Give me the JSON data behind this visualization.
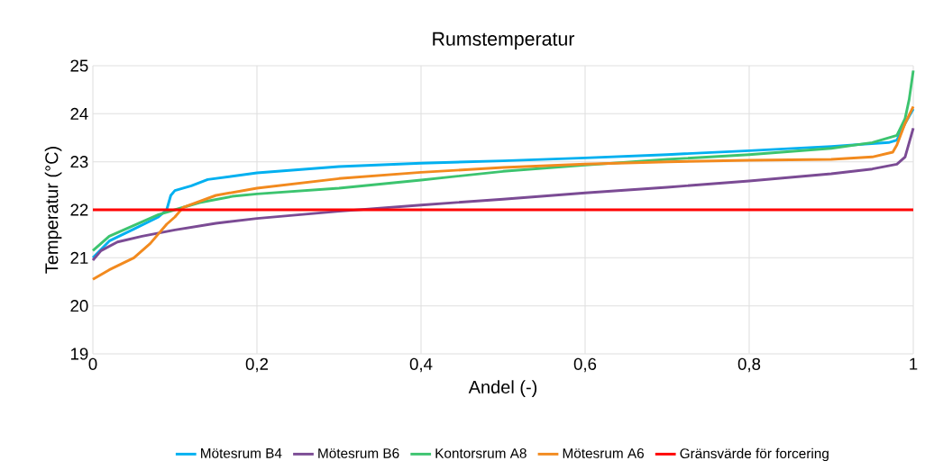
{
  "chart_data": {
    "type": "line",
    "title": "Rumstemperatur",
    "xlabel": "Andel (-)",
    "ylabel": "Temperatur (°C)",
    "xlim": [
      0,
      1
    ],
    "ylim": [
      19,
      25
    ],
    "xticks": [
      0,
      {
        "value": 0.2,
        "label": "0,2"
      },
      {
        "value": 0.4,
        "label": "0,4"
      },
      {
        "value": 0.6,
        "label": "0,6"
      },
      {
        "value": 0.8,
        "label": "0,8"
      },
      1
    ],
    "yticks": [
      19,
      20,
      21,
      22,
      23,
      24,
      25
    ],
    "grid": true,
    "legend": "bottom",
    "marker": "none",
    "line_style": "solid",
    "series": [
      {
        "name": "Mötesrum B4",
        "color": "#00b0f0",
        "x": [
          0,
          0.02,
          0.05,
          0.08,
          0.09,
          0.095,
          0.1,
          0.12,
          0.14,
          0.2,
          0.3,
          0.4,
          0.5,
          0.6,
          0.7,
          0.8,
          0.9,
          0.97,
          0.98,
          0.99,
          1.0
        ],
        "values": [
          21.0,
          21.35,
          21.6,
          21.85,
          22.0,
          22.3,
          22.4,
          22.5,
          22.63,
          22.77,
          22.9,
          22.97,
          23.02,
          23.08,
          23.15,
          23.23,
          23.32,
          23.4,
          23.45,
          23.8,
          24.1
        ]
      },
      {
        "name": "Mötesrum B6",
        "color": "#7b4b94",
        "x": [
          0,
          0.01,
          0.03,
          0.06,
          0.1,
          0.15,
          0.2,
          0.3,
          0.4,
          0.5,
          0.6,
          0.7,
          0.8,
          0.9,
          0.95,
          0.98,
          0.99,
          0.995,
          1.0
        ],
        "values": [
          20.95,
          21.15,
          21.33,
          21.45,
          21.58,
          21.72,
          21.82,
          21.97,
          22.1,
          22.22,
          22.35,
          22.47,
          22.6,
          22.75,
          22.85,
          22.95,
          23.1,
          23.4,
          23.7
        ]
      },
      {
        "name": "Kontorsrum A8",
        "color": "#3cc46f",
        "x": [
          0,
          0.01,
          0.02,
          0.04,
          0.06,
          0.08,
          0.1,
          0.13,
          0.17,
          0.2,
          0.3,
          0.4,
          0.5,
          0.6,
          0.7,
          0.8,
          0.9,
          0.95,
          0.98,
          0.99,
          0.995,
          1.0
        ],
        "values": [
          21.15,
          21.3,
          21.45,
          21.6,
          21.75,
          21.9,
          22.0,
          22.15,
          22.28,
          22.33,
          22.45,
          22.62,
          22.8,
          22.93,
          23.05,
          23.15,
          23.28,
          23.4,
          23.55,
          23.9,
          24.3,
          24.9
        ]
      },
      {
        "name": "Mötesrum A6",
        "color": "#f28a1e",
        "x": [
          0,
          0.02,
          0.05,
          0.07,
          0.09,
          0.1,
          0.11,
          0.15,
          0.2,
          0.3,
          0.4,
          0.5,
          0.6,
          0.7,
          0.8,
          0.9,
          0.95,
          0.975,
          0.98,
          0.99,
          1.0
        ],
        "values": [
          20.55,
          20.75,
          21.0,
          21.3,
          21.7,
          21.85,
          22.05,
          22.3,
          22.45,
          22.65,
          22.78,
          22.88,
          22.95,
          23.0,
          23.03,
          23.05,
          23.1,
          23.2,
          23.35,
          23.8,
          24.15
        ]
      }
    ],
    "ref_lines": [
      {
        "axis": "y",
        "value": 22,
        "label": "Gränsvärde för forcering",
        "color": "#ff0000",
        "line_style": "solid"
      }
    ]
  }
}
